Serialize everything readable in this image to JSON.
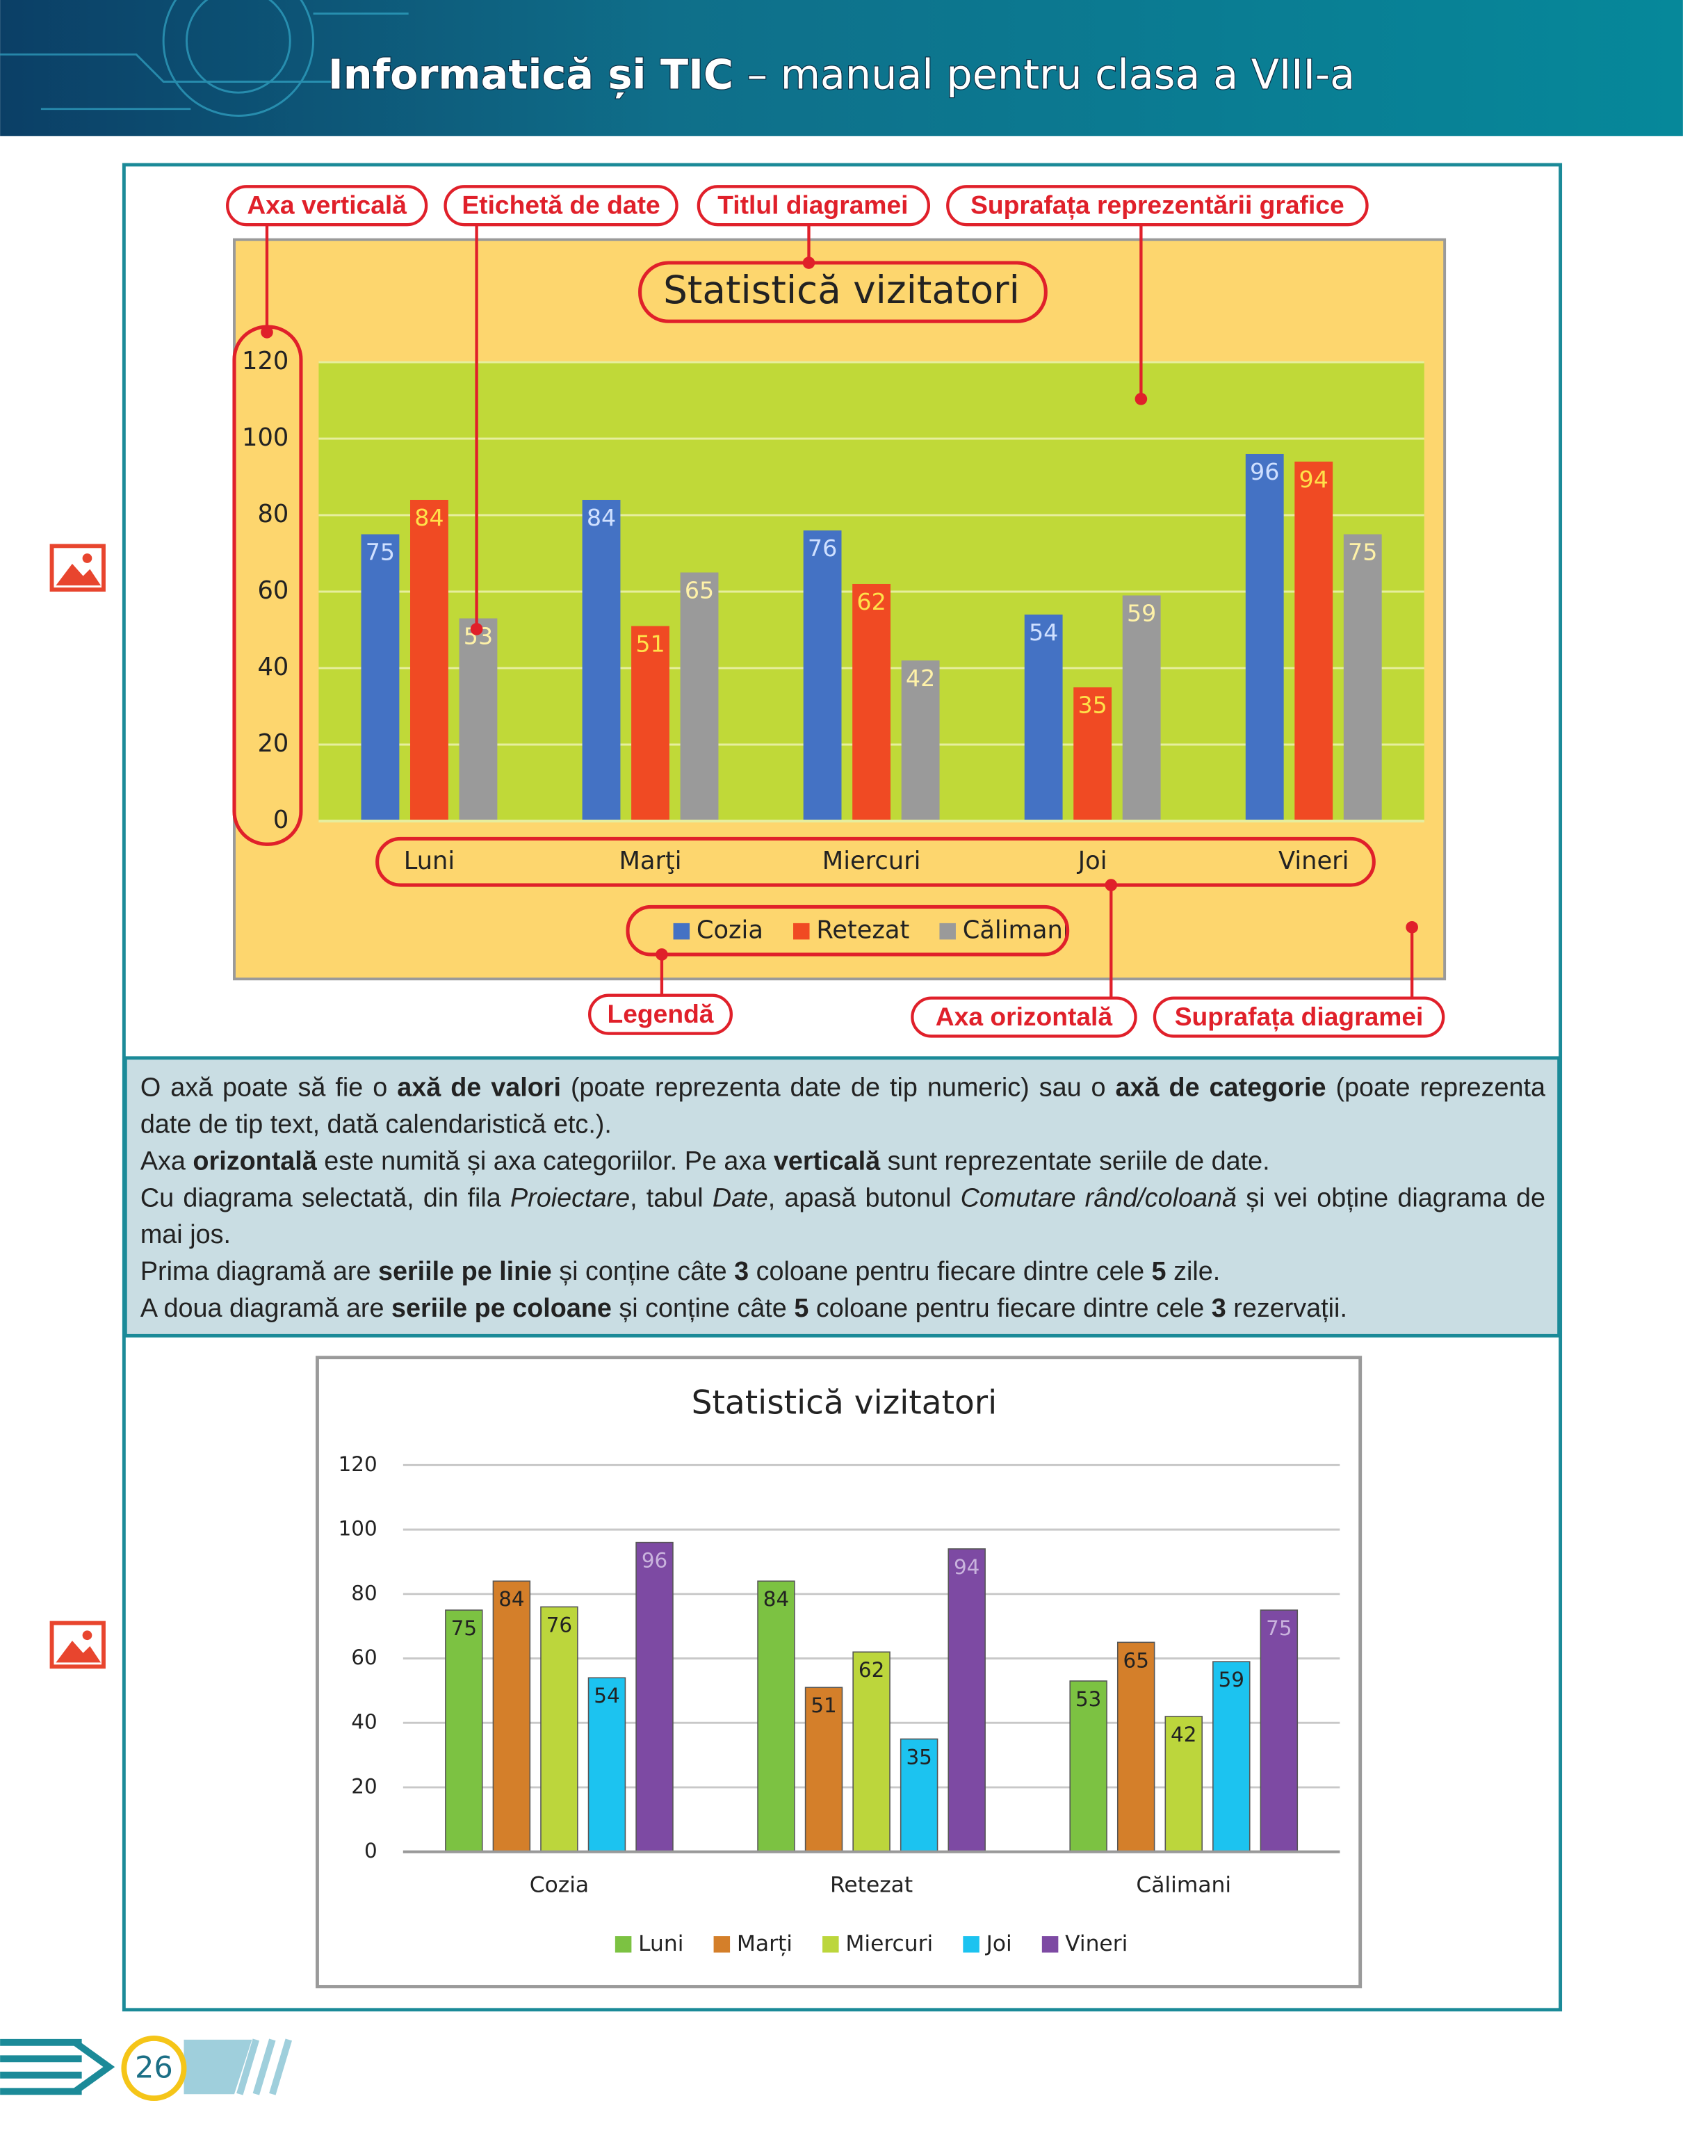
{
  "header": {
    "title": "Informatică și TIC",
    "subtitle": "– manual pentru clasa a VIII-a"
  },
  "callouts": [
    "Axa verticală",
    "Etichetă de date",
    "Titlul diagramei",
    "Suprafața reprezentării grafice",
    "Legendă",
    "Axa orizontală",
    "Suprafața diagramei"
  ],
  "chart_data": [
    {
      "type": "bar",
      "title": "Statistică vizitatori",
      "categories": [
        "Luni",
        "Marţi",
        "Miercuri",
        "Joi",
        "Vineri"
      ],
      "series": [
        {
          "name": "Cozia",
          "color": "#4472c4",
          "label_color": "#cfe0ff",
          "values": [
            75,
            84,
            76,
            54,
            96
          ]
        },
        {
          "name": "Retezat",
          "color": "#f04a23",
          "label_color": "#ffe14a",
          "values": [
            84,
            51,
            62,
            35,
            94
          ]
        },
        {
          "name": "Călimani",
          "color": "#9a9a9a",
          "label_color": "#fff2a8",
          "values": [
            53,
            65,
            42,
            59,
            75
          ]
        }
      ],
      "ylim": [
        0,
        120
      ],
      "yticks": [
        0,
        20,
        40,
        60,
        80,
        100,
        120
      ],
      "grid": true,
      "legend": "bottom"
    },
    {
      "type": "bar",
      "title": "Statistică vizitatori",
      "categories": [
        "Cozia",
        "Retezat",
        "Călimani"
      ],
      "series": [
        {
          "name": "Luni",
          "color": "#7cc242",
          "label_color": "#222222",
          "values": [
            75,
            84,
            53
          ]
        },
        {
          "name": "Marți",
          "color": "#d47f2a",
          "label_color": "#222222",
          "values": [
            84,
            51,
            65
          ]
        },
        {
          "name": "Miercuri",
          "color": "#bcd63c",
          "label_color": "#222222",
          "values": [
            76,
            62,
            42
          ]
        },
        {
          "name": "Joi",
          "color": "#1cc3f0",
          "label_color": "#222222",
          "values": [
            54,
            35,
            59
          ]
        },
        {
          "name": "Vineri",
          "color": "#7d4aa3",
          "label_color": "#c9b3dd",
          "values": [
            96,
            94,
            75
          ]
        }
      ],
      "ylim": [
        0,
        120
      ],
      "yticks": [
        0,
        20,
        40,
        60,
        80,
        100,
        120
      ],
      "grid": true,
      "legend": "bottom"
    }
  ],
  "text": [
    {
      "runs": [
        {
          "t": "O axă poate să fie o "
        },
        {
          "t": "axă de valori",
          "b": true
        },
        {
          "t": " (poate reprezenta date de tip numeric) sau o "
        },
        {
          "t": "axă de categorie",
          "b": true
        },
        {
          "t": " (poate reprezenta date de tip text, dată calendaristică etc.)."
        }
      ]
    },
    {
      "runs": [
        {
          "t": "Axa "
        },
        {
          "t": "orizontală",
          "b": true
        },
        {
          "t": " este numită și axa categoriilor. Pe axa "
        },
        {
          "t": "verticală",
          "b": true
        },
        {
          "t": " sunt reprezentate seriile de date."
        }
      ]
    },
    {
      "runs": [
        {
          "t": "Cu diagrama selectată, din fila "
        },
        {
          "t": "Proiectare",
          "i": true
        },
        {
          "t": ", tabul "
        },
        {
          "t": "Date",
          "i": true
        },
        {
          "t": ", apasă butonul "
        },
        {
          "t": "Comutare rând/coloană",
          "i": true
        },
        {
          "t": " și vei obține diagrama de mai jos."
        }
      ]
    },
    {
      "runs": [
        {
          "t": "Prima diagramă are "
        },
        {
          "t": "seriile pe linie",
          "b": true
        },
        {
          "t": " și conține câte "
        },
        {
          "t": "3",
          "b": true
        },
        {
          "t": " coloane pentru fiecare dintre cele "
        },
        {
          "t": "5",
          "b": true
        },
        {
          "t": " zile."
        }
      ]
    },
    {
      "runs": [
        {
          "t": "A doua diagramă are "
        },
        {
          "t": "seriile pe coloane",
          "b": true
        },
        {
          "t": " și conține câte "
        },
        {
          "t": "5",
          "b": true
        },
        {
          "t": " coloane pentru fiecare dintre cele "
        },
        {
          "t": "3",
          "b": true
        },
        {
          "t": " rezervații."
        }
      ]
    }
  ],
  "page_number": "26"
}
